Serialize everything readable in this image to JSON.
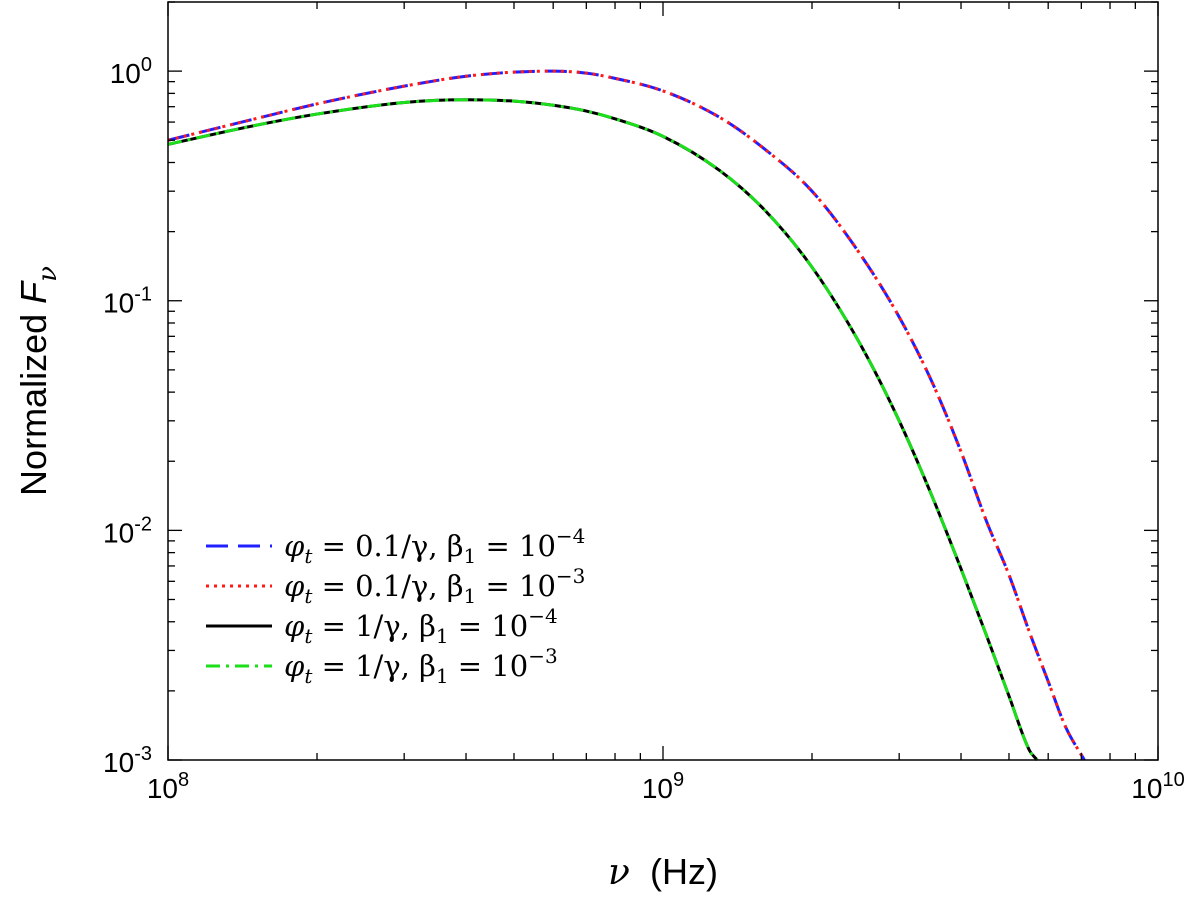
{
  "chart_data": {
    "type": "line",
    "title": "",
    "xlabel": {
      "symbol": "ν",
      "unit": "(Hz)"
    },
    "ylabel": {
      "text": "Normalized ",
      "symbol": "F",
      "subscript": "ν"
    },
    "x_scale": "log",
    "y_scale": "log",
    "xlim": [
      100000000,
      10000000000
    ],
    "ylim": [
      0.001,
      2
    ],
    "grid": false,
    "legend_position": "bottom-left",
    "x_ticks": [
      {
        "value": 100000000,
        "base": "10",
        "exp": "8"
      },
      {
        "value": 1000000000,
        "base": "10",
        "exp": "9"
      },
      {
        "value": 10000000000,
        "base": "10",
        "exp": "10"
      }
    ],
    "y_ticks": [
      {
        "value": 0.001,
        "base": "10",
        "exp": "-3"
      },
      {
        "value": 0.01,
        "base": "10",
        "exp": "-2"
      },
      {
        "value": 0.1,
        "base": "10",
        "exp": "-1"
      },
      {
        "value": 1,
        "base": "10",
        "exp": "0"
      }
    ],
    "series": [
      {
        "name": "φt = 0.1/γ, β1 = 10^-4",
        "legend": {
          "pre": "φ",
          "sub1": "t",
          "mid": " = 0.1/γ, β",
          "sub2": "1",
          "eq": " = 10",
          "sup": "−4"
        },
        "color": "#1f1fff",
        "dash": "22,10",
        "points": [
          [
            100000000,
            0.5
          ],
          [
            150000000,
            0.62
          ],
          [
            200000000,
            0.72
          ],
          [
            300000000,
            0.86
          ],
          [
            400000000,
            0.95
          ],
          [
            500000000,
            0.99
          ],
          [
            600000000,
            1.0
          ],
          [
            700000000,
            0.98
          ],
          [
            800000000,
            0.93
          ],
          [
            1000000000,
            0.82
          ],
          [
            1300000000,
            0.63
          ],
          [
            1600000000,
            0.46
          ],
          [
            2000000000,
            0.3
          ],
          [
            2500000000,
            0.16
          ],
          [
            3000000000,
            0.085
          ],
          [
            3500000000,
            0.044
          ],
          [
            4000000000,
            0.022
          ],
          [
            4500000000,
            0.011
          ],
          [
            5000000000,
            0.0064
          ],
          [
            5500000000,
            0.0036
          ],
          [
            6000000000,
            0.0022
          ],
          [
            6500000000,
            0.0014
          ],
          [
            7100000000,
            0.001
          ]
        ]
      },
      {
        "name": "φt = 0.1/γ, β1 = 10^-3",
        "legend": {
          "pre": "φ",
          "sub1": "t",
          "mid": " = 0.1/γ, β",
          "sub2": "1",
          "eq": " = 10",
          "sup": "−3"
        },
        "color": "#ff1a1a",
        "dash": "3,5",
        "points": [
          [
            100000000,
            0.5
          ],
          [
            150000000,
            0.62
          ],
          [
            200000000,
            0.72
          ],
          [
            300000000,
            0.86
          ],
          [
            400000000,
            0.95
          ],
          [
            500000000,
            0.99
          ],
          [
            600000000,
            1.0
          ],
          [
            700000000,
            0.98
          ],
          [
            800000000,
            0.93
          ],
          [
            1000000000,
            0.82
          ],
          [
            1300000000,
            0.63
          ],
          [
            1600000000,
            0.46
          ],
          [
            2000000000,
            0.3
          ],
          [
            2500000000,
            0.16
          ],
          [
            3000000000,
            0.085
          ],
          [
            3500000000,
            0.044
          ],
          [
            4000000000,
            0.022
          ],
          [
            4500000000,
            0.011
          ],
          [
            5000000000,
            0.0064
          ],
          [
            5500000000,
            0.0036
          ],
          [
            6000000000,
            0.0022
          ],
          [
            6500000000,
            0.0014
          ],
          [
            7100000000,
            0.001
          ]
        ]
      },
      {
        "name": "φt = 1/γ, β1 = 10^-4",
        "legend": {
          "pre": "φ",
          "sub1": "t",
          "mid": " = 1/γ, β",
          "sub2": "1",
          "eq": " = 10",
          "sup": "−4"
        },
        "color": "#000000",
        "dash": "",
        "points": [
          [
            100000000,
            0.48
          ],
          [
            150000000,
            0.58
          ],
          [
            200000000,
            0.65
          ],
          [
            300000000,
            0.73
          ],
          [
            400000000,
            0.75
          ],
          [
            500000000,
            0.74
          ],
          [
            600000000,
            0.71
          ],
          [
            700000000,
            0.67
          ],
          [
            800000000,
            0.62
          ],
          [
            1000000000,
            0.52
          ],
          [
            1300000000,
            0.37
          ],
          [
            1600000000,
            0.25
          ],
          [
            2000000000,
            0.14
          ],
          [
            2500000000,
            0.065
          ],
          [
            3000000000,
            0.03
          ],
          [
            3500000000,
            0.014
          ],
          [
            4000000000,
            0.0068
          ],
          [
            4500000000,
            0.0035
          ],
          [
            5000000000,
            0.0019
          ],
          [
            5500000000,
            0.0011
          ],
          [
            5700000000,
            0.001
          ]
        ]
      },
      {
        "name": "φt = 1/γ, β1 = 10^-3",
        "legend": {
          "pre": "φ",
          "sub1": "t",
          "mid": " = 1/γ, β",
          "sub2": "1",
          "eq": " = 10",
          "sup": "−3"
        },
        "color": "#1adf1a",
        "dash": "14,6,3,6",
        "points": [
          [
            100000000,
            0.48
          ],
          [
            150000000,
            0.58
          ],
          [
            200000000,
            0.65
          ],
          [
            300000000,
            0.73
          ],
          [
            400000000,
            0.75
          ],
          [
            500000000,
            0.74
          ],
          [
            600000000,
            0.71
          ],
          [
            700000000,
            0.67
          ],
          [
            800000000,
            0.62
          ],
          [
            1000000000,
            0.52
          ],
          [
            1300000000,
            0.37
          ],
          [
            1600000000,
            0.25
          ],
          [
            2000000000,
            0.14
          ],
          [
            2500000000,
            0.065
          ],
          [
            3000000000,
            0.03
          ],
          [
            3500000000,
            0.014
          ],
          [
            4000000000,
            0.0068
          ],
          [
            4500000000,
            0.0035
          ],
          [
            5000000000,
            0.0019
          ],
          [
            5500000000,
            0.0011
          ],
          [
            5700000000,
            0.001
          ]
        ]
      }
    ]
  }
}
